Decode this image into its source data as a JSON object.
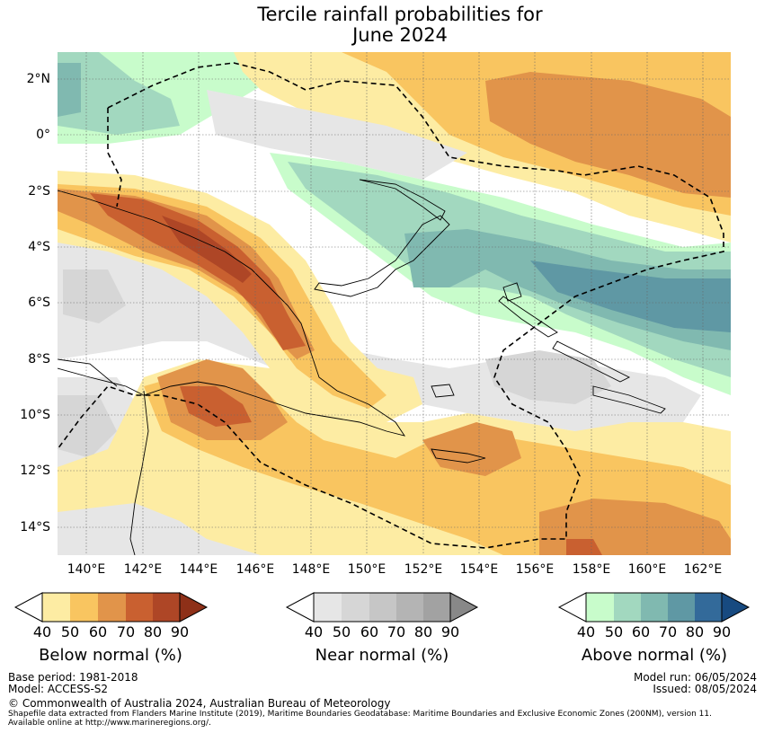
{
  "title": {
    "line1": "Tercile rainfall probabilities for",
    "line2": "June 2024"
  },
  "axes": {
    "lat_labels": [
      "2°N",
      "0°",
      "2°S",
      "4°S",
      "6°S",
      "8°S",
      "10°S",
      "12°S",
      "14°S"
    ],
    "lon_labels": [
      "140°E",
      "142°E",
      "144°E",
      "146°E",
      "148°E",
      "150°E",
      "152°E",
      "154°E",
      "156°E",
      "158°E",
      "160°E",
      "162°E"
    ]
  },
  "colorbars": {
    "below": {
      "label": "Below normal (%)",
      "ticks": [
        "40",
        "50",
        "60",
        "70",
        "80",
        "90"
      ],
      "colors": [
        "#fdeca3",
        "#f9c560",
        "#e1944a",
        "#c96030",
        "#ae4626",
        "#8e3018"
      ]
    },
    "near": {
      "label": "Near normal (%)",
      "ticks": [
        "40",
        "50",
        "60",
        "70",
        "80",
        "90"
      ],
      "colors": [
        "#e6e6e6",
        "#d6d6d6",
        "#c6c6c6",
        "#b4b4b4",
        "#a2a2a2",
        "#888888"
      ]
    },
    "above": {
      "label": "Above normal (%)",
      "ticks": [
        "40",
        "50",
        "60",
        "70",
        "80",
        "90"
      ],
      "colors": [
        "#c8fccb",
        "#a2d8bf",
        "#80b9b0",
        "#5f98a4",
        "#336a9a",
        "#174a80"
      ]
    }
  },
  "footer": {
    "base_period": "Base period: 1981-2018",
    "model": "Model: ACCESS-S2",
    "model_run": "Model run: 06/05/2024",
    "issued": "Issued: 08/05/2024",
    "copyright": "© Commonwealth of Australia 2024, Australian Bureau of Meteorology",
    "shapefile": "Shapefile data extracted from Flanders Marine Institute (2019), Maritime Boundaries Geodatabase: Maritime Boundaries and Exclusive Economic Zones (200NM), version 11.",
    "available": "Available online at http://www.marineregions.org/."
  },
  "legend_colors": {
    "white": "#ffffff",
    "coast": "#000000"
  }
}
